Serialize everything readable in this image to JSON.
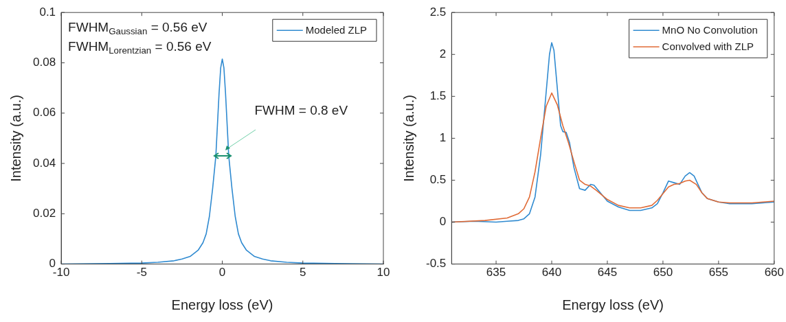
{
  "chart_data": [
    {
      "type": "line",
      "xlabel": "Energy loss (eV)",
      "ylabel": "Intensity (a.u.)",
      "xlim": [
        -10,
        10
      ],
      "xticks": [
        -10,
        -5,
        0,
        5,
        10
      ],
      "ylim": [
        0,
        0.1
      ],
      "yticks": [
        0,
        0.02,
        0.04,
        0.06,
        0.08,
        0.1
      ],
      "grid": false,
      "legend": "top right",
      "marker": "none",
      "line_style": "solid",
      "annotations": [
        "FWHM$_{Gaussian}$ = 0.56 eV",
        "FWHM$_{Lorentzian}$ = 0.56 eV",
        "FWHM = 0.8 eV"
      ],
      "x": [
        -10,
        -7,
        -5,
        -4,
        -3,
        -2.5,
        -2,
        -1.5,
        -1.2,
        -1,
        -0.8,
        -0.6,
        -0.4,
        -0.2,
        -0.1,
        0,
        0.1,
        0.2,
        0.4,
        0.6,
        0.8,
        1,
        1.2,
        1.5,
        2,
        2.5,
        3,
        4,
        5,
        7,
        10
      ],
      "series": [
        {
          "name": "Modeled ZLP",
          "color": "#2f8ad0",
          "values": [
            0,
            0.0002,
            0.0004,
            0.0007,
            0.0013,
            0.002,
            0.003,
            0.0055,
            0.0085,
            0.012,
            0.019,
            0.03,
            0.043,
            0.068,
            0.078,
            0.0815,
            0.078,
            0.068,
            0.043,
            0.03,
            0.019,
            0.012,
            0.0085,
            0.0055,
            0.003,
            0.002,
            0.0013,
            0.0007,
            0.0004,
            0.0002,
            0
          ]
        }
      ]
    },
    {
      "type": "line",
      "xlabel": "Energy loss (eV)",
      "ylabel": "Intensity (a.u.)",
      "xlim": [
        631,
        660
      ],
      "xticks": [
        635,
        640,
        645,
        650,
        655,
        660
      ],
      "ylim": [
        -0.5,
        2.5
      ],
      "yticks": [
        -0.5,
        0,
        0.5,
        1,
        1.5,
        2,
        2.5
      ],
      "grid": false,
      "legend": "top right",
      "marker": "none",
      "line_style": "solid",
      "series": [
        {
          "name": "MnO No Convolution",
          "color": "#2f8ad0",
          "x": [
            631,
            633,
            635,
            636,
            637,
            637.5,
            638,
            638.5,
            639,
            639.5,
            639.8,
            640,
            640.2,
            640.5,
            640.8,
            641,
            641.3,
            641.6,
            642,
            642.5,
            643,
            643.5,
            643.8,
            644.5,
            645,
            646,
            647,
            648,
            649,
            649.5,
            650,
            650.5,
            651,
            651.5,
            652,
            652.4,
            652.8,
            653.5,
            654,
            655,
            656,
            658,
            660
          ],
          "values": [
            0,
            0.01,
            0,
            0.01,
            0.02,
            0.04,
            0.1,
            0.3,
            0.8,
            1.55,
            2.0,
            2.14,
            2.05,
            1.6,
            1.15,
            1.08,
            1.07,
            0.95,
            0.65,
            0.4,
            0.38,
            0.45,
            0.44,
            0.33,
            0.25,
            0.18,
            0.14,
            0.14,
            0.17,
            0.22,
            0.35,
            0.49,
            0.47,
            0.45,
            0.55,
            0.59,
            0.55,
            0.35,
            0.28,
            0.24,
            0.22,
            0.22,
            0.24
          ]
        },
        {
          "name": "Convolved with ZLP",
          "color": "#e06a35",
          "x": [
            631,
            634,
            636,
            637,
            637.5,
            638,
            638.5,
            639,
            639.5,
            640,
            640.5,
            641,
            641.5,
            642,
            642.5,
            643,
            643.5,
            644,
            645,
            646,
            647,
            648,
            649,
            649.5,
            650,
            650.5,
            651,
            651.5,
            652,
            652.4,
            653,
            653.5,
            654,
            655,
            656,
            658,
            660
          ],
          "values": [
            0,
            0.02,
            0.05,
            0.1,
            0.16,
            0.3,
            0.6,
            1.0,
            1.38,
            1.54,
            1.4,
            1.15,
            0.95,
            0.72,
            0.5,
            0.45,
            0.43,
            0.38,
            0.27,
            0.2,
            0.17,
            0.17,
            0.2,
            0.26,
            0.34,
            0.42,
            0.45,
            0.46,
            0.49,
            0.5,
            0.45,
            0.35,
            0.28,
            0.24,
            0.23,
            0.23,
            0.25
          ]
        }
      ]
    }
  ]
}
